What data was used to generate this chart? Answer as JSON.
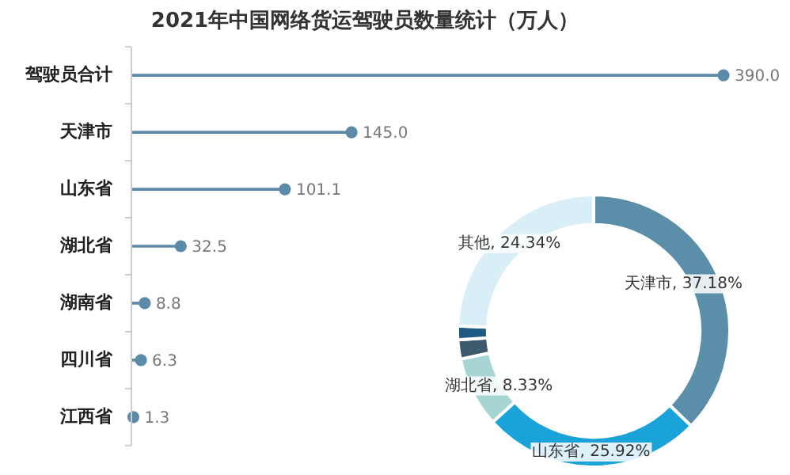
{
  "chart_data": [
    {
      "type": "lollipop",
      "title": "2021年中国网络货运驾驶员数量统计（万人）",
      "orientation": "horizontal",
      "categories": [
        "驾驶员合计",
        "天津市",
        "山东省",
        "湖北省",
        "湖南省",
        "四川省",
        "江西省"
      ],
      "values": [
        390.0,
        145.0,
        101.1,
        32.5,
        8.8,
        6.3,
        1.3
      ],
      "color": "#5b8ba8",
      "value_labels": [
        "390.0",
        "145.0",
        "101.1",
        "32.5",
        "8.8",
        "6.3",
        "1.3"
      ],
      "tick_labels": "y",
      "grid": false,
      "legend": false,
      "marker": "circle"
    },
    {
      "type": "donut",
      "categories": [
        "天津市",
        "山东省",
        "湖北省",
        null,
        null,
        null,
        "其他"
      ],
      "values": [
        37.18,
        25.92,
        8.33,
        2.26,
        1.62,
        null,
        24.34
      ],
      "colors": [
        "#5a8ea9",
        "#1aa3d9",
        "#a6d5d4",
        "#3d5a6c",
        "#1f5a84",
        "#0f4c6e",
        "#d9eff8"
      ],
      "value_labels": [
        "37.18%",
        "25.92%",
        "8.33%",
        null,
        null,
        null,
        "24.34%"
      ],
      "legend": false
    }
  ]
}
